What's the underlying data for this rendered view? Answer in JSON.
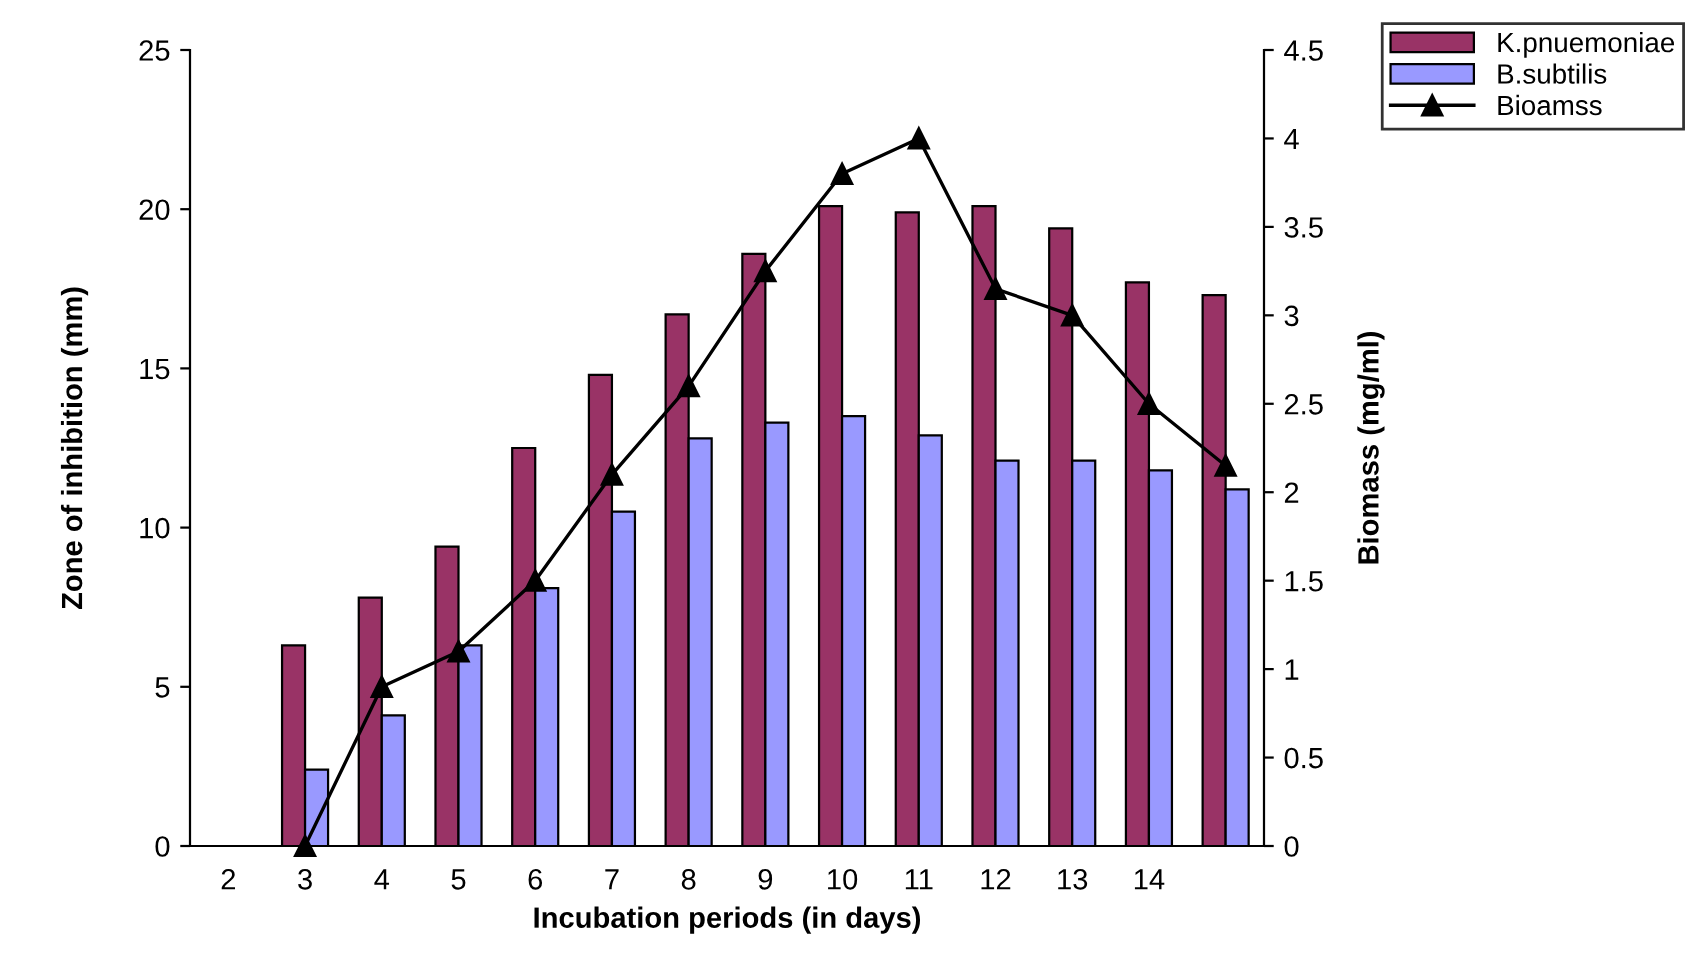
{
  "chart_data": {
    "type": "bar",
    "xlabel": "Incubation periods (in days)",
    "ylabel": "Zone of inhibition (mm)",
    "y2label": "Biomass (mg/ml)",
    "categories": [
      "2",
      "3",
      "4",
      "5",
      "6",
      "7",
      "8",
      "9",
      "10",
      "11",
      "12",
      "13",
      "14",
      null
    ],
    "series": [
      {
        "name": "K.pnuemoniae",
        "color": "#993366",
        "values": [
          null,
          6.3,
          7.8,
          9.4,
          12.5,
          14.8,
          16.7,
          18.6,
          20.1,
          19.9,
          20.1,
          19.4,
          17.7,
          17.3
        ]
      },
      {
        "name": "B.subtilis",
        "color": "#9999ff",
        "values": [
          null,
          2.4,
          4.1,
          6.3,
          8.1,
          10.5,
          12.8,
          13.3,
          13.5,
          12.9,
          12.1,
          12.1,
          11.8,
          11.2
        ]
      },
      {
        "name": "Bioamss",
        "type": "line",
        "axis": "y2",
        "color": "#000000",
        "marker": "triangle",
        "line_style": "solid",
        "values": [
          null,
          0,
          0.9,
          1.1,
          1.5,
          2.1,
          2.6,
          3.25,
          3.8,
          4.0,
          3.15,
          3.0,
          2.5,
          2.15
        ]
      }
    ],
    "ylim": [
      0,
      25
    ],
    "yticks": [
      0,
      5,
      10,
      15,
      20,
      25
    ],
    "y2lim": [
      0,
      4.5
    ],
    "y2ticks": [
      0,
      0.5,
      1,
      1.5,
      2,
      2.5,
      3,
      3.5,
      4,
      4.5
    ],
    "grid": false,
    "legend": "top right"
  }
}
